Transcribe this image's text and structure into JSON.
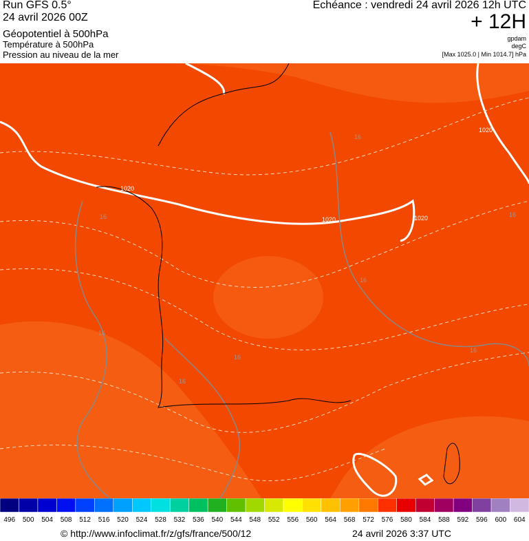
{
  "header": {
    "run": "Run GFS 0.5°",
    "run_date": "24 avril 2026 00Z",
    "field1": "Géopotentiel à 500hPa",
    "field2": "Température à 500hPa",
    "field3": "Pression au niveau de la mer",
    "valid": "Echéance : vendredi 24 avril 2026 12h UTC",
    "lead": "+ 12H",
    "unit1": "gpdam",
    "unit2": "degC",
    "minmax": "[Max 1025.0 | Min 1014.7] hPa"
  },
  "map_labels": [
    "1020",
    "1020",
    "1020",
    "1020",
    "16",
    "16",
    "16",
    "16",
    "16",
    "16",
    "16",
    "16"
  ],
  "colorbar": {
    "ticks": [
      496,
      500,
      504,
      508,
      512,
      516,
      520,
      524,
      528,
      532,
      536,
      540,
      544,
      548,
      552,
      556,
      560,
      564,
      568,
      572,
      576,
      580,
      584,
      588,
      592,
      596,
      600,
      604
    ],
    "colors": [
      "#000080",
      "#0000a8",
      "#0000d0",
      "#0010f0",
      "#0040ff",
      "#0070ff",
      "#00a0ff",
      "#00c8ff",
      "#00e0e0",
      "#00d0a0",
      "#00c060",
      "#20b020",
      "#60c000",
      "#a0d800",
      "#d8e800",
      "#ffff00",
      "#ffe000",
      "#ffc000",
      "#ffa000",
      "#ff7800",
      "#ff3000",
      "#e80000",
      "#c00030",
      "#a00060",
      "#800080",
      "#8040a0",
      "#a080c0",
      "#d0b8e0"
    ]
  },
  "footer": {
    "url": "© http://www.infoclimat.fr/z/gfs/france/500/12",
    "generated": "24 avril 2026  3:37 UTC"
  }
}
